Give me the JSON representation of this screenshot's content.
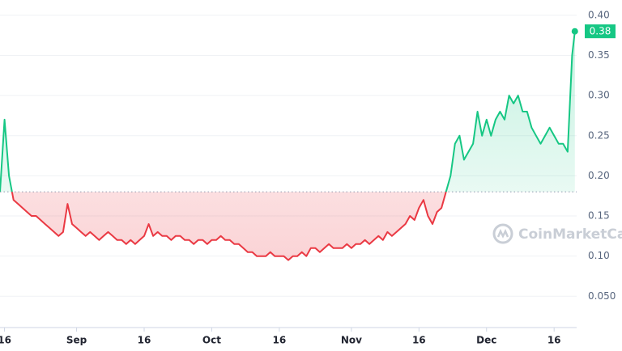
{
  "chart_data": {
    "type": "line",
    "x": [
      -1,
      0,
      1,
      2,
      3,
      4,
      5,
      6,
      7,
      8,
      9,
      10,
      11,
      12,
      13,
      14,
      15,
      16,
      17,
      18,
      19,
      20,
      21,
      22,
      23,
      24,
      25,
      26,
      27,
      28,
      29,
      30,
      31,
      32,
      33,
      34,
      35,
      36,
      37,
      38,
      39,
      40,
      41,
      42,
      43,
      44,
      45,
      46,
      47,
      48,
      49,
      50,
      51,
      52,
      53,
      54,
      55,
      56,
      57,
      58,
      59,
      60,
      61,
      62,
      63,
      64,
      65,
      66,
      67,
      68,
      69,
      70,
      71,
      72,
      73,
      74,
      75,
      76,
      77,
      78,
      79,
      80,
      81,
      82,
      83,
      84,
      85,
      86,
      87,
      88,
      89,
      90,
      91,
      92,
      93,
      94,
      95,
      96,
      97,
      98,
      99,
      100,
      101,
      102,
      103,
      104,
      105,
      106,
      107,
      108,
      109,
      110,
      111,
      112,
      113,
      114,
      115,
      116,
      117,
      118,
      119,
      120,
      121,
      122,
      123,
      124,
      125,
      126,
      126.6
    ],
    "values": [
      0.18,
      0.27,
      0.2,
      0.17,
      0.165,
      0.16,
      0.155,
      0.15,
      0.15,
      0.145,
      0.14,
      0.135,
      0.13,
      0.125,
      0.13,
      0.165,
      0.14,
      0.135,
      0.13,
      0.125,
      0.13,
      0.125,
      0.12,
      0.125,
      0.13,
      0.125,
      0.12,
      0.12,
      0.115,
      0.12,
      0.115,
      0.12,
      0.125,
      0.14,
      0.125,
      0.13,
      0.125,
      0.125,
      0.12,
      0.125,
      0.125,
      0.12,
      0.12,
      0.115,
      0.12,
      0.12,
      0.115,
      0.12,
      0.12,
      0.125,
      0.12,
      0.12,
      0.115,
      0.115,
      0.11,
      0.105,
      0.105,
      0.1,
      0.1,
      0.1,
      0.105,
      0.1,
      0.1,
      0.1,
      0.095,
      0.1,
      0.1,
      0.105,
      0.1,
      0.11,
      0.11,
      0.105,
      0.11,
      0.115,
      0.11,
      0.11,
      0.11,
      0.115,
      0.11,
      0.115,
      0.115,
      0.12,
      0.115,
      0.12,
      0.125,
      0.12,
      0.13,
      0.125,
      0.13,
      0.135,
      0.14,
      0.15,
      0.145,
      0.16,
      0.17,
      0.15,
      0.14,
      0.155,
      0.16,
      0.18,
      0.2,
      0.24,
      0.25,
      0.22,
      0.23,
      0.24,
      0.28,
      0.25,
      0.27,
      0.25,
      0.27,
      0.28,
      0.27,
      0.3,
      0.29,
      0.3,
      0.28,
      0.28,
      0.26,
      0.25,
      0.24,
      0.25,
      0.26,
      0.25,
      0.24,
      0.24,
      0.23,
      0.35,
      0.38
    ],
    "colors": {
      "up": "#16c784",
      "down": "#ea3943"
    },
    "baseline": 0.18,
    "current_value": 0.38,
    "watermark": "CoinMarketCap",
    "xlim": [
      -1,
      127
    ],
    "xticks": [
      {
        "value": 0,
        "label": "16"
      },
      {
        "value": 16,
        "label": "Sep"
      },
      {
        "value": 31,
        "label": "16"
      },
      {
        "value": 46,
        "label": "Oct"
      },
      {
        "value": 61,
        "label": "16"
      },
      {
        "value": 77,
        "label": "Nov"
      },
      {
        "value": 92,
        "label": "16"
      },
      {
        "value": 107,
        "label": "Dec"
      },
      {
        "value": 122,
        "label": "16"
      }
    ],
    "ylim": [
      0.01,
      0.42
    ],
    "yticks": [
      {
        "value": 0.05,
        "label": "0.050"
      },
      {
        "value": 0.1,
        "label": "0.10"
      },
      0.15,
      {
        "value": 0.2,
        "label": "0.20"
      },
      0.25,
      {
        "value": 0.3,
        "label": "0.30"
      },
      0.35,
      {
        "value": 0.4,
        "label": "0.40"
      }
    ],
    "grid": true
  }
}
